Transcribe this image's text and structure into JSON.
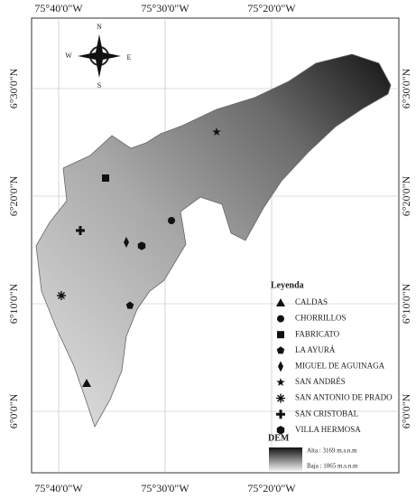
{
  "graticule": {
    "top": [
      "75°40'0\"W",
      "75°30'0\"W",
      "75°20'0\"W"
    ],
    "bottom": [
      "75°40'0\"W",
      "75°30'0\"W",
      "75°20'0\"W"
    ],
    "left": [
      "6°30'0\"N",
      "6°20'0\"N",
      "6°10'0\"N",
      "6°0'0\"N"
    ],
    "right": [
      "6°30'0\"N",
      "6°20'0\"N",
      "6°10'0\"N",
      "6°0'0\"N"
    ]
  },
  "north_arrow": {
    "n": "N",
    "s": "S",
    "e": "E",
    "w": "W"
  },
  "legend": {
    "title": "Leyenda",
    "items": [
      "CALDAS",
      "CHORRILLOS",
      "FABRICATO",
      "LA AYURÁ",
      "MIGUEL DE AGUINAGA",
      "SAN ANDRÉS",
      "SAN ANTONIO DE PRADO",
      "SAN CRISTOBAL",
      "VILLA HERMOSA"
    ]
  },
  "dem": {
    "title": "DEM",
    "high": "Alta : 3169 m.s.n.m",
    "low": "Baja : 1065 m.s.n.m"
  }
}
